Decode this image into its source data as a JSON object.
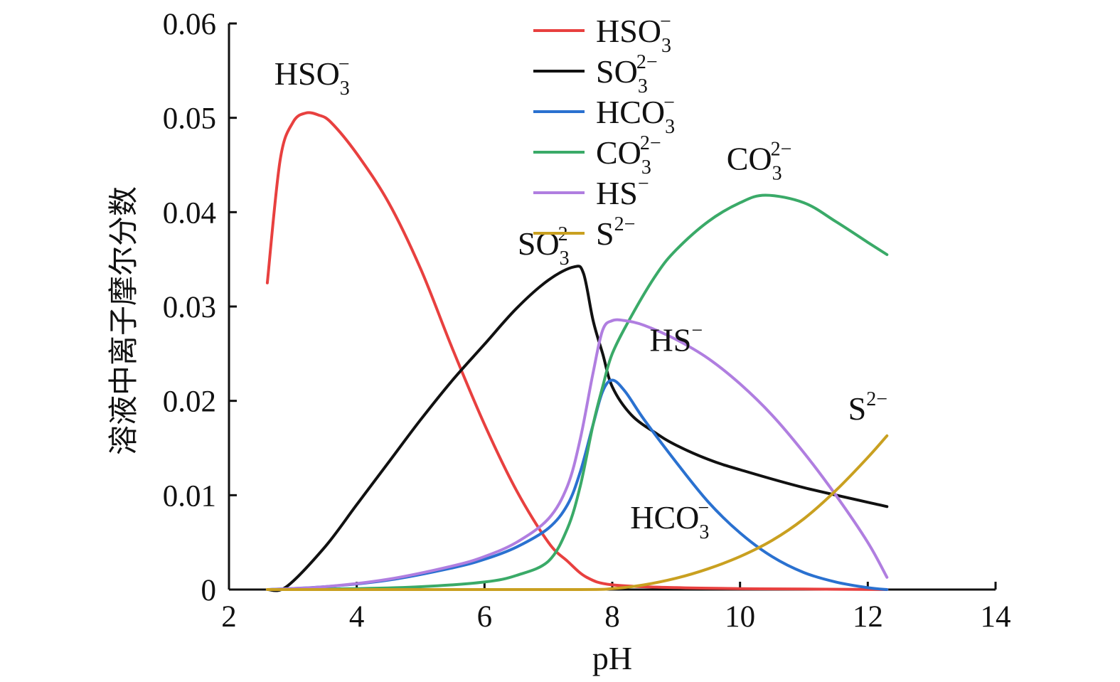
{
  "chart_data": {
    "type": "line",
    "title": "",
    "xlabel": "pH",
    "ylabel": "溶液中离子摩尔分数",
    "xlim": [
      2,
      14
    ],
    "ylim": [
      0,
      0.06
    ],
    "x_ticks": [
      "2",
      "4",
      "6",
      "8",
      "10",
      "12",
      "14"
    ],
    "y_ticks": [
      "0",
      "0.01",
      "0.02",
      "0.03",
      "0.04",
      "0.05",
      "0.06"
    ],
    "grid": false,
    "legend_position": "top-center",
    "series": [
      {
        "name": "HSO3−",
        "label_base": "HSO",
        "label_sub": "3",
        "label_sup": "−",
        "color": "#e8403f",
        "x": [
          2.6,
          2.8,
          3.0,
          3.2,
          3.4,
          3.6,
          4.0,
          4.5,
          5.0,
          5.5,
          6.0,
          6.5,
          7.0,
          7.3,
          7.6,
          8.0,
          9.0,
          10.0,
          11.0,
          12.3
        ],
        "y": [
          0.0325,
          0.0455,
          0.0495,
          0.0505,
          0.0503,
          0.0495,
          0.0462,
          0.041,
          0.034,
          0.0255,
          0.0175,
          0.0105,
          0.005,
          0.003,
          0.0013,
          0.0005,
          0.0002,
          0.0001,
          5e-05,
          0.0
        ]
      },
      {
        "name": "SO32−",
        "label_base": "SO",
        "label_sub": "3",
        "label_sup": "2−",
        "color": "#111111",
        "x": [
          2.6,
          2.9,
          3.5,
          4.0,
          4.5,
          5.0,
          5.5,
          6.0,
          6.5,
          7.0,
          7.4,
          7.55,
          7.7,
          7.85,
          8.0,
          8.3,
          8.7,
          9.0,
          9.5,
          10.0,
          11.0,
          12.3
        ],
        "y": [
          0.0,
          0.0003,
          0.0045,
          0.009,
          0.0135,
          0.018,
          0.0222,
          0.026,
          0.0298,
          0.0328,
          0.0342,
          0.0335,
          0.0285,
          0.025,
          0.0215,
          0.0185,
          0.0165,
          0.0153,
          0.0138,
          0.0127,
          0.0108,
          0.0088
        ]
      },
      {
        "name": "HCO3−",
        "label_base": "HCO",
        "label_sub": "3",
        "label_sup": "−",
        "color": "#2a71d0",
        "x": [
          2.6,
          3.5,
          4.5,
          5.5,
          6.0,
          6.5,
          7.0,
          7.3,
          7.5,
          7.7,
          7.85,
          8.0,
          8.2,
          8.5,
          9.0,
          9.5,
          10.0,
          10.5,
          11.0,
          11.5,
          12.0,
          12.3
        ],
        "y": [
          0.0,
          0.0003,
          0.001,
          0.0023,
          0.0032,
          0.0045,
          0.0065,
          0.009,
          0.0125,
          0.0175,
          0.021,
          0.0222,
          0.021,
          0.018,
          0.0135,
          0.0093,
          0.006,
          0.0035,
          0.0018,
          0.0008,
          0.0002,
          0.0
        ]
      },
      {
        "name": "CO32−",
        "label_base": "CO",
        "label_sub": "3",
        "label_sup": "2−",
        "color": "#3aaa68",
        "x": [
          2.6,
          4.0,
          5.0,
          6.0,
          6.5,
          7.0,
          7.3,
          7.5,
          7.7,
          7.85,
          8.0,
          8.3,
          8.7,
          9.0,
          9.5,
          10.0,
          10.4,
          11.0,
          11.5,
          12.0,
          12.3
        ],
        "y": [
          0.0,
          0.0001,
          0.0003,
          0.0008,
          0.0015,
          0.003,
          0.0065,
          0.011,
          0.0175,
          0.0215,
          0.025,
          0.029,
          0.0335,
          0.036,
          0.039,
          0.041,
          0.0418,
          0.041,
          0.039,
          0.0368,
          0.0355
        ]
      },
      {
        "name": "HS−",
        "label_base": "HS",
        "label_sub": "",
        "label_sup": "−",
        "color": "#b07ee0",
        "x": [
          2.6,
          3.5,
          4.5,
          5.5,
          6.0,
          6.5,
          7.0,
          7.3,
          7.5,
          7.7,
          7.85,
          8.0,
          8.2,
          8.5,
          9.0,
          9.5,
          10.0,
          10.5,
          11.0,
          11.5,
          12.0,
          12.3
        ],
        "y": [
          0.0,
          0.0003,
          0.0011,
          0.0025,
          0.0035,
          0.005,
          0.0075,
          0.011,
          0.016,
          0.023,
          0.0275,
          0.0285,
          0.0285,
          0.028,
          0.0265,
          0.0245,
          0.0218,
          0.0185,
          0.0145,
          0.01,
          0.005,
          0.0013
        ]
      },
      {
        "name": "S2−",
        "label_base": "S",
        "label_sub": "",
        "label_sup": "2−",
        "color": "#c9a020",
        "x": [
          2.6,
          5.0,
          7.5,
          8.0,
          8.5,
          9.0,
          9.5,
          10.0,
          10.5,
          11.0,
          11.5,
          12.0,
          12.3
        ],
        "y": [
          0.0,
          0.0,
          0.0,
          0.0001,
          0.0005,
          0.0012,
          0.0022,
          0.0035,
          0.0052,
          0.0075,
          0.0105,
          0.014,
          0.0163
        ]
      }
    ],
    "annotations": [
      {
        "series": 0,
        "x": 3.3,
        "y": 0.0535
      },
      {
        "series": 1,
        "x": 7.0,
        "y": 0.0355
      },
      {
        "series": 2,
        "x": 8.9,
        "y": 0.0065
      },
      {
        "series": 3,
        "x": 10.3,
        "y": 0.0445
      },
      {
        "series": 4,
        "x": 9.0,
        "y": 0.0253
      },
      {
        "series": 5,
        "x": 12.0,
        "y": 0.018
      }
    ]
  }
}
